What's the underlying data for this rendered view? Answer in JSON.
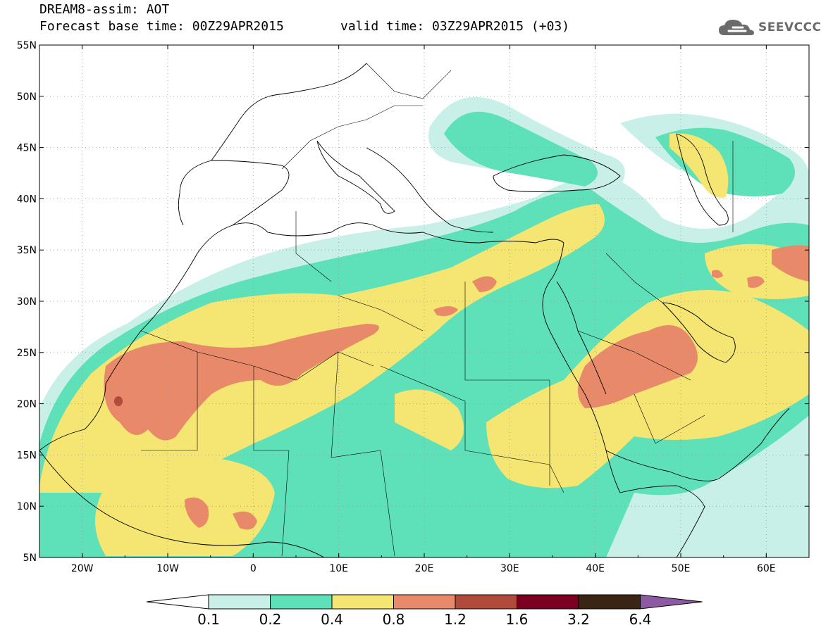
{
  "title": {
    "line1": "DREAM8-assim: AOT",
    "line2": "Forecast base time: 00Z29APR2015",
    "valid": "valid time: 03Z29APR2015 (+03)"
  },
  "logo": {
    "text": "SEEVCCC",
    "icon": "cloud-icon"
  },
  "map": {
    "lon_range": [
      -25,
      65
    ],
    "lat_range": [
      5,
      55
    ],
    "lat_labels": [
      "55N",
      "50N",
      "45N",
      "40N",
      "35N",
      "30N",
      "25N",
      "20N",
      "15N",
      "10N",
      "5N"
    ],
    "lon_labels": [
      "20W",
      "10W",
      "0",
      "10E",
      "20E",
      "30E",
      "40E",
      "50E",
      "60E"
    ],
    "grid": "dotted"
  },
  "colorbar": {
    "labels": [
      "0.1",
      "0.2",
      "0.4",
      "0.8",
      "1.2",
      "1.6",
      "3.2",
      "6.4"
    ],
    "colors": [
      "#ffffff",
      "#c8f0e8",
      "#5ee0b8",
      "#f5e572",
      "#e8896a",
      "#b04a3a",
      "#7a0020",
      "#3a2414",
      "#8c5aa0"
    ]
  },
  "colors": {
    "lt": "#c8f0e8",
    "md": "#5ee0b8",
    "yl": "#f5e572",
    "or": "#e8896a",
    "rd": "#b04a3a"
  }
}
